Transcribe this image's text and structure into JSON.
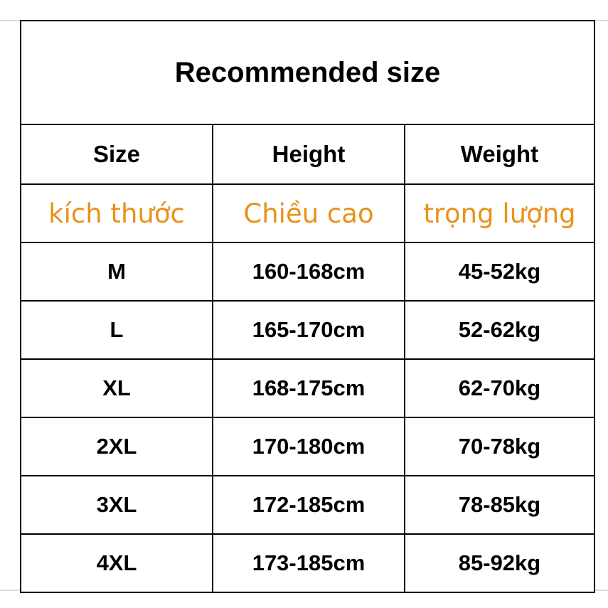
{
  "title": "Recommended size",
  "colors": {
    "accent_orange": "#e8921c",
    "table_border": "#000000",
    "gridline_gray": "#d8dce1",
    "background": "#ffffff",
    "text_black": "#000000"
  },
  "table": {
    "headers_en": {
      "size": "Size",
      "height": "Height",
      "weight": "Weight"
    },
    "headers_vi": {
      "size": "kích thước",
      "height": "Chiều cao",
      "weight": "trọng lượng"
    },
    "rows": [
      {
        "size": "M",
        "height": "160-168cm",
        "weight": "45-52kg"
      },
      {
        "size": "L",
        "height": "165-170cm",
        "weight": "52-62kg"
      },
      {
        "size": "XL",
        "height": "168-175cm",
        "weight": "62-70kg"
      },
      {
        "size": "2XL",
        "height": "170-180cm",
        "weight": "70-78kg"
      },
      {
        "size": "3XL",
        "height": "172-185cm",
        "weight": "78-85kg"
      },
      {
        "size": "4XL",
        "height": "173-185cm",
        "weight": "85-92kg"
      }
    ]
  }
}
